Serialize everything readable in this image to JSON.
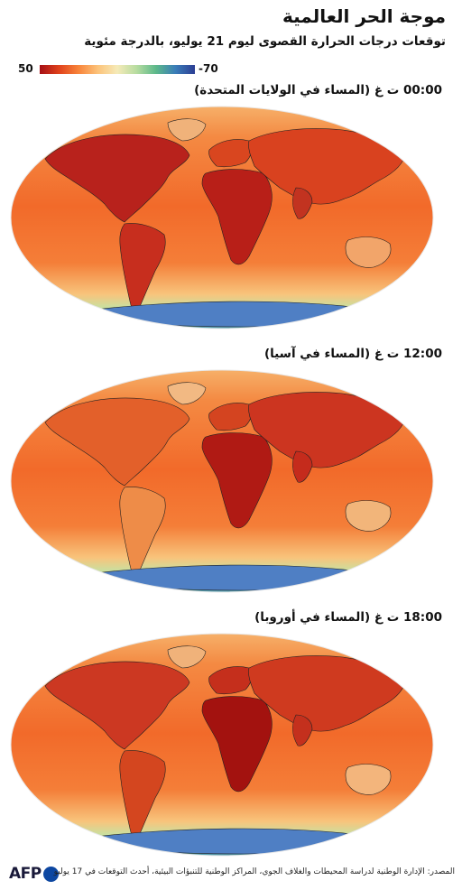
{
  "header": {
    "title": "موجة الحر العالمية",
    "subtitle": "توقعات درجات الحرارة القصوى ليوم 21 يوليو، بالدرجة مئوية"
  },
  "legend": {
    "max_label": "50",
    "min_label": "-70",
    "max_value": 50,
    "min_value": -70,
    "colors": [
      "#a50f15",
      "#e0421c",
      "#f8843a",
      "#fcc37a",
      "#f5eab8",
      "#b6dca0",
      "#5cb88a",
      "#3a7db8",
      "#2c3e94"
    ]
  },
  "panels": [
    {
      "title": "00:00 ت غ (المساء في الولايات المتحدة)",
      "hot_region": "americas"
    },
    {
      "title": "12:00 ت غ (المساء في آسيا)",
      "hot_region": "asia"
    },
    {
      "title": "18:00 ت غ (المساء في أوروبا)",
      "hot_region": "europe-africa"
    }
  ],
  "footer": {
    "logo_text": "AFP",
    "source": "المصدر: الإدارة الوطنية لدراسة المحيطات والغلاف الجوي، المراكز الوطنية للتنبؤات البيئية، أحدث التوقعات في 17 يوليو"
  }
}
